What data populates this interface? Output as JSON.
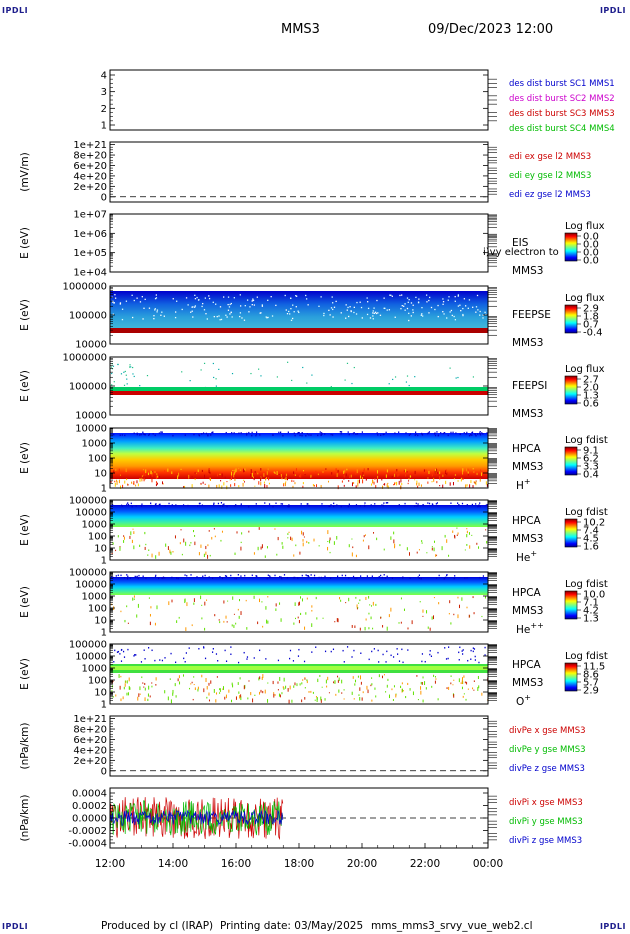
{
  "header": {
    "corner_left_top": "IPDLI",
    "corner_right_top": "IPDLI",
    "corner_left_bottom": "IPDLI",
    "corner_right_bottom": "IPDLI",
    "spacecraft": "MMS3",
    "datetime": "09/Dec/2023 12:00"
  },
  "footer": {
    "produced_by": "Produced by cl (IRAP)",
    "printing_date": "Printing date: 03/May/2025",
    "filename": "mms_mms3_srvy_vue_web2.cl"
  },
  "colors": {
    "axis": "#000000",
    "blue": "#0000cc",
    "magenta": "#cc00cc",
    "red": "#cc0000",
    "green": "#00bb00",
    "dark_red": "#aa0000"
  },
  "chart_data": [
    {
      "type": "line",
      "panel": "fgm-status",
      "ylabel": "",
      "yticks": [
        "4",
        "3",
        "2",
        "1"
      ],
      "ylim": [
        0.7,
        4.3
      ],
      "legend": [
        {
          "label": "des dist burst SC1 MMS1",
          "color": "#0000cc"
        },
        {
          "label": "des dist burst SC2 MMS2",
          "color": "#cc00cc"
        },
        {
          "label": "des dist burst SC3 MMS3",
          "color": "#cc0000"
        },
        {
          "label": "des dist burst SC4 MMS4",
          "color": "#00bb00"
        }
      ],
      "series": []
    },
    {
      "type": "line",
      "panel": "edi-e",
      "ylabel": "(mV/m)",
      "yticks": [
        "1e+21",
        "8e+20",
        "6e+20",
        "4e+20",
        "2e+20",
        "0"
      ],
      "ylim": [
        -1e+20,
        1.05e+21
      ],
      "legend": [
        {
          "label": "edi ex gse l2 MMS3",
          "color": "#cc0000"
        },
        {
          "label": "edi ey gse l2 MMS3",
          "color": "#00bb00"
        },
        {
          "label": "edi ez gse l2 MMS3",
          "color": "#0000cc"
        }
      ],
      "zero_line": true,
      "series": []
    },
    {
      "type": "heatmap",
      "panel": "eis",
      "ylabel": "E (eV)",
      "yticks": [
        "1e+07",
        "1e+06",
        "1e+05",
        "1e+04"
      ],
      "ylog": true,
      "ylim": [
        10000,
        10000000
      ],
      "instrument": "EIS",
      "instrument_sub": "MMS3",
      "overlay_text": "i)vy electron to",
      "cbar_title": "Log flux",
      "cbar_ticks": [
        "0.0",
        "0.0",
        "0.0",
        "0.0"
      ],
      "values": []
    },
    {
      "type": "heatmap",
      "panel": "feeps-e",
      "ylabel": "E (eV)",
      "yticks": [
        "1000000",
        "100000",
        "10000"
      ],
      "ylog": true,
      "ylim": [
        10000,
        1000000
      ],
      "instrument": "FEEPSE",
      "instrument_sub": "MMS3",
      "cbar_title": "Log flux",
      "cbar_ticks": [
        "2.9",
        "1.8",
        "0.7",
        "-0.4"
      ]
    },
    {
      "type": "heatmap",
      "panel": "feeps-i",
      "ylabel": "E (eV)",
      "yticks": [
        "1000000",
        "100000",
        "10000"
      ],
      "ylog": true,
      "ylim": [
        10000,
        1000000
      ],
      "instrument": "FEEPSI",
      "instrument_sub": "MMS3",
      "cbar_title": "Log flux",
      "cbar_ticks": [
        "2.7",
        "2.0",
        "1.3",
        "0.6"
      ]
    },
    {
      "type": "heatmap",
      "panel": "hpca-h",
      "ylabel": "E (eV)",
      "yticks": [
        "10000",
        "1000",
        "100",
        "10",
        "1"
      ],
      "ylog": true,
      "ylim": [
        1,
        30000
      ],
      "instrument": "HPCA",
      "instrument_sub": "MMS3",
      "species": "H",
      "species_sup": "+",
      "cbar_title": "Log fdist",
      "cbar_ticks": [
        "9.1",
        "6.2",
        "3.3",
        "0.4"
      ]
    },
    {
      "type": "heatmap",
      "panel": "hpca-he",
      "ylabel": "E (eV)",
      "yticks": [
        "100000",
        "10000",
        "1000",
        "100",
        "10",
        "1"
      ],
      "ylog": true,
      "ylim": [
        1,
        100000
      ],
      "instrument": "HPCA",
      "instrument_sub": "MMS3",
      "species": "He",
      "species_sup": "+",
      "cbar_title": "Log fdist",
      "cbar_ticks": [
        "10.2",
        "7.4",
        "4.5",
        "1.6"
      ]
    },
    {
      "type": "heatmap",
      "panel": "hpca-hepp",
      "ylabel": "E (eV)",
      "yticks": [
        "100000",
        "10000",
        "1000",
        "100",
        "10",
        "1"
      ],
      "ylog": true,
      "ylim": [
        1,
        100000
      ],
      "instrument": "HPCA",
      "instrument_sub": "MMS3",
      "species": "He",
      "species_sup": "++",
      "cbar_title": "Log fdist",
      "cbar_ticks": [
        "10.0",
        "7.1",
        "4.2",
        "1.3"
      ]
    },
    {
      "type": "heatmap",
      "panel": "hpca-o",
      "ylabel": "E (eV)",
      "yticks": [
        "100000",
        "10000",
        "1000",
        "100",
        "10",
        "1"
      ],
      "ylog": true,
      "ylim": [
        1,
        100000
      ],
      "instrument": "HPCA",
      "instrument_sub": "MMS3",
      "species": "O",
      "species_sup": "+",
      "cbar_title": "Log fdist",
      "cbar_ticks": [
        "11.5",
        "8.6",
        "5.7",
        "2.9"
      ]
    },
    {
      "type": "line",
      "panel": "divpe",
      "ylabel": "(nPa/km)",
      "yticks": [
        "1e+21",
        "8e+20",
        "6e+20",
        "4e+20",
        "2e+20",
        "0"
      ],
      "ylim": [
        -1e+20,
        1.05e+21
      ],
      "legend": [
        {
          "label": "divPe x gse MMS3",
          "color": "#cc0000"
        },
        {
          "label": "divPe y gse MMS3",
          "color": "#00bb00"
        },
        {
          "label": "divPe z gse MMS3",
          "color": "#0000cc"
        }
      ],
      "zero_line": true,
      "series": []
    },
    {
      "type": "line",
      "panel": "divpi",
      "ylabel": "(nPa/km)",
      "yticks": [
        "0.0004",
        "0.0002",
        "0.0000",
        "-0.0002",
        "-0.0004"
      ],
      "ylim": [
        -0.00048,
        0.00048
      ],
      "legend": [
        {
          "label": "divPi x gse MMS3",
          "color": "#cc0000"
        },
        {
          "label": "divPi y gse MMS3",
          "color": "#00bb00"
        },
        {
          "label": "divPi z gse MMS3",
          "color": "#0000cc"
        }
      ],
      "zero_line": true,
      "series_extent": [
        "12:00",
        "17:30"
      ],
      "series": [
        {
          "name": "divPi x gse MMS3",
          "amplitude": 0.00034
        },
        {
          "name": "divPi y gse MMS3",
          "amplitude": 0.00028
        },
        {
          "name": "divPi z gse MMS3",
          "amplitude": 0.00012
        }
      ]
    }
  ],
  "x_axis": {
    "ticks": [
      "12:00",
      "14:00",
      "16:00",
      "18:00",
      "20:00",
      "22:00",
      "00:00"
    ],
    "range_hours": [
      12,
      24
    ]
  }
}
